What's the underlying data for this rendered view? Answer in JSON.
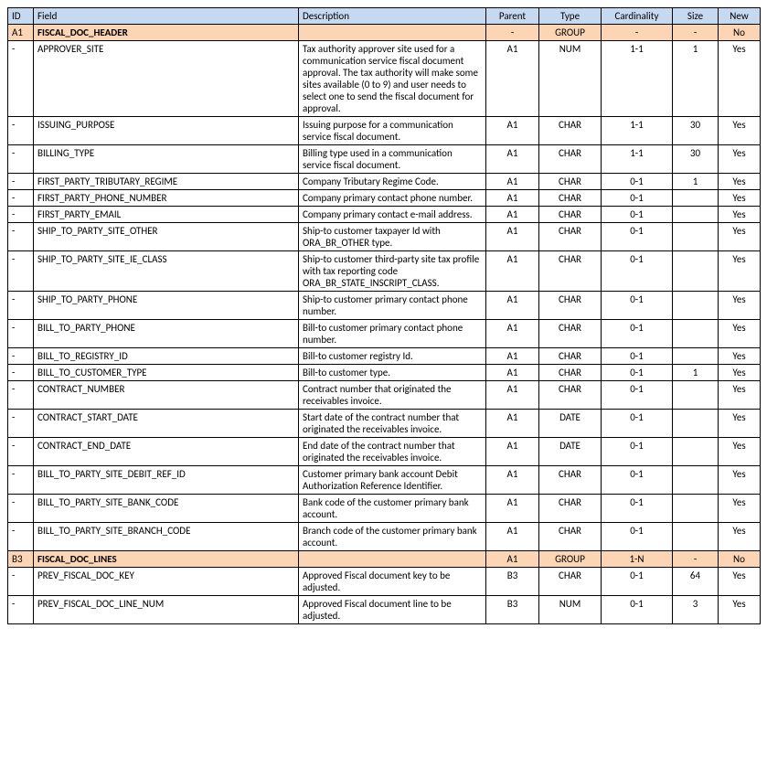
{
  "colors": {
    "header_bg": "#c5d9f1",
    "group_bg": "#fcd5b4",
    "border": "#000000",
    "text": "#000000",
    "page_bg": "#ffffff"
  },
  "columns": [
    {
      "key": "id",
      "label": "ID",
      "align": "left"
    },
    {
      "key": "field",
      "label": "Field",
      "align": "left"
    },
    {
      "key": "desc",
      "label": "Description",
      "align": "left"
    },
    {
      "key": "parent",
      "label": "Parent",
      "align": "center"
    },
    {
      "key": "type",
      "label": "Type",
      "align": "center"
    },
    {
      "key": "card",
      "label": "Cardinality",
      "align": "center"
    },
    {
      "key": "size",
      "label": "Size",
      "align": "center"
    },
    {
      "key": "new",
      "label": "New",
      "align": "center"
    }
  ],
  "rows": [
    {
      "group": true,
      "id": "A1",
      "field": "FISCAL_DOC_HEADER",
      "desc": "",
      "parent": "-",
      "type": "GROUP",
      "card": "-",
      "size": "-",
      "new": "No"
    },
    {
      "id": "-",
      "field": "APPROVER_SITE",
      "desc": "Tax authority approver site used for a communication service fiscal document approval. The tax authority will make some sites available (0 to 9) and user needs to select one to send the fiscal document for approval.",
      "parent": "A1",
      "type": "NUM",
      "card": "1-1",
      "size": "1",
      "new": "Yes"
    },
    {
      "id": "-",
      "field": "ISSUING_PURPOSE",
      "desc": "Issuing purpose for a communication service fiscal document.",
      "parent": "A1",
      "type": "CHAR",
      "card": "1-1",
      "size": "30",
      "new": "Yes"
    },
    {
      "id": "-",
      "field": "BILLING_TYPE",
      "desc": "Billing type used in a communication service fiscal document.",
      "parent": "A1",
      "type": "CHAR",
      "card": "1-1",
      "size": "30",
      "new": "Yes"
    },
    {
      "id": "-",
      "field": "FIRST_PARTY_TRIBUTARY_REGIME",
      "desc": "Company Tributary Regime Code.",
      "parent": "A1",
      "type": "CHAR",
      "card": "0-1",
      "size": "1",
      "new": "Yes"
    },
    {
      "id": "-",
      "field": "FIRST_PARTY_PHONE_NUMBER",
      "desc": "Company primary contact phone number.",
      "parent": "A1",
      "type": "CHAR",
      "card": "0-1",
      "size": "",
      "new": "Yes"
    },
    {
      "id": "-",
      "field": "FIRST_PARTY_EMAIL",
      "desc": "Company primary contact e-mail address.",
      "parent": "A1",
      "type": "CHAR",
      "card": "0-1",
      "size": "",
      "new": "Yes"
    },
    {
      "id": "-",
      "field": "SHIP_TO_PARTY_SITE_OTHER",
      "desc": "Ship-to customer taxpayer Id with ORA_BR_OTHER type.",
      "parent": "A1",
      "type": "CHAR",
      "card": "0-1",
      "size": "",
      "new": "Yes"
    },
    {
      "id": "-",
      "field": "SHIP_TO_PARTY_SITE_IE_CLASS",
      "desc": "Ship-to customer third-party site tax profile with tax reporting code ORA_BR_STATE_INSCRIPT_CLASS.",
      "parent": "A1",
      "type": "CHAR",
      "card": "0-1",
      "size": "",
      "new": "Yes"
    },
    {
      "id": "-",
      "field": "SHIP_TO_PARTY_PHONE",
      "desc": "Ship-to customer primary contact phone number.",
      "parent": "A1",
      "type": "CHAR",
      "card": "0-1",
      "size": "",
      "new": "Yes"
    },
    {
      "id": "-",
      "field": "BILL_TO_PARTY_PHONE",
      "desc": "Bill-to customer primary contact phone number.",
      "parent": "A1",
      "type": "CHAR",
      "card": "0-1",
      "size": "",
      "new": "Yes"
    },
    {
      "id": "-",
      "field": "BILL_TO_REGISTRY_ID",
      "desc": "Bill-to customer registry Id.",
      "parent": "A1",
      "type": "CHAR",
      "card": "0-1",
      "size": "",
      "new": "Yes"
    },
    {
      "id": "-",
      "field": "BILL_TO_CUSTOMER_TYPE",
      "desc": "Bill-to customer type.",
      "parent": "A1",
      "type": "CHAR",
      "card": "0-1",
      "size": "1",
      "new": "Yes"
    },
    {
      "id": "-",
      "field": "CONTRACT_NUMBER",
      "desc": "Contract number that originated the receivables invoice.",
      "parent": "A1",
      "type": "CHAR",
      "card": "0-1",
      "size": "",
      "new": "Yes"
    },
    {
      "id": "-",
      "field": "CONTRACT_START_DATE",
      "desc": "Start date of the contract number that originated the receivables invoice.",
      "parent": "A1",
      "type": "DATE",
      "card": "0-1",
      "size": "",
      "new": "Yes"
    },
    {
      "id": "-",
      "field": "CONTRACT_END_DATE",
      "desc": "End date of the contract number that originated the receivables invoice.",
      "parent": "A1",
      "type": "DATE",
      "card": "0-1",
      "size": "",
      "new": "Yes"
    },
    {
      "id": "-",
      "field": "BILL_TO_PARTY_SITE_DEBIT_REF_ID",
      "desc": "Customer primary bank account Debit Authorization Reference Identifier.",
      "parent": "A1",
      "type": "CHAR",
      "card": "0-1",
      "size": "",
      "new": "Yes"
    },
    {
      "id": "-",
      "field": "BILL_TO_PARTY_SITE_BANK_CODE",
      "desc": "Bank code of the customer primary bank account.",
      "parent": "A1",
      "type": "CHAR",
      "card": "0-1",
      "size": "",
      "new": "Yes"
    },
    {
      "id": "-",
      "field": "BILL_TO_PARTY_SITE_BRANCH_CODE",
      "desc": "Branch code of the customer primary bank account.",
      "parent": "A1",
      "type": "CHAR",
      "card": "0-1",
      "size": "",
      "new": "Yes"
    },
    {
      "group": true,
      "id": "B3",
      "field": "FISCAL_DOC_LINES",
      "desc": "",
      "parent": "A1",
      "type": "GROUP",
      "card": "1-N",
      "size": "-",
      "new": "No"
    },
    {
      "id": "-",
      "field": "PREV_FISCAL_DOC_KEY",
      "desc": "Approved Fiscal document key to be adjusted.",
      "parent": "B3",
      "type": "CHAR",
      "card": "0-1",
      "size": "64",
      "new": "Yes"
    },
    {
      "id": "-",
      "field": "PREV_FISCAL_DOC_LINE_NUM",
      "desc": "Approved Fiscal document line to be adjusted.",
      "parent": "B3",
      "type": "NUM",
      "card": "0-1",
      "size": "3",
      "new": "Yes"
    }
  ]
}
